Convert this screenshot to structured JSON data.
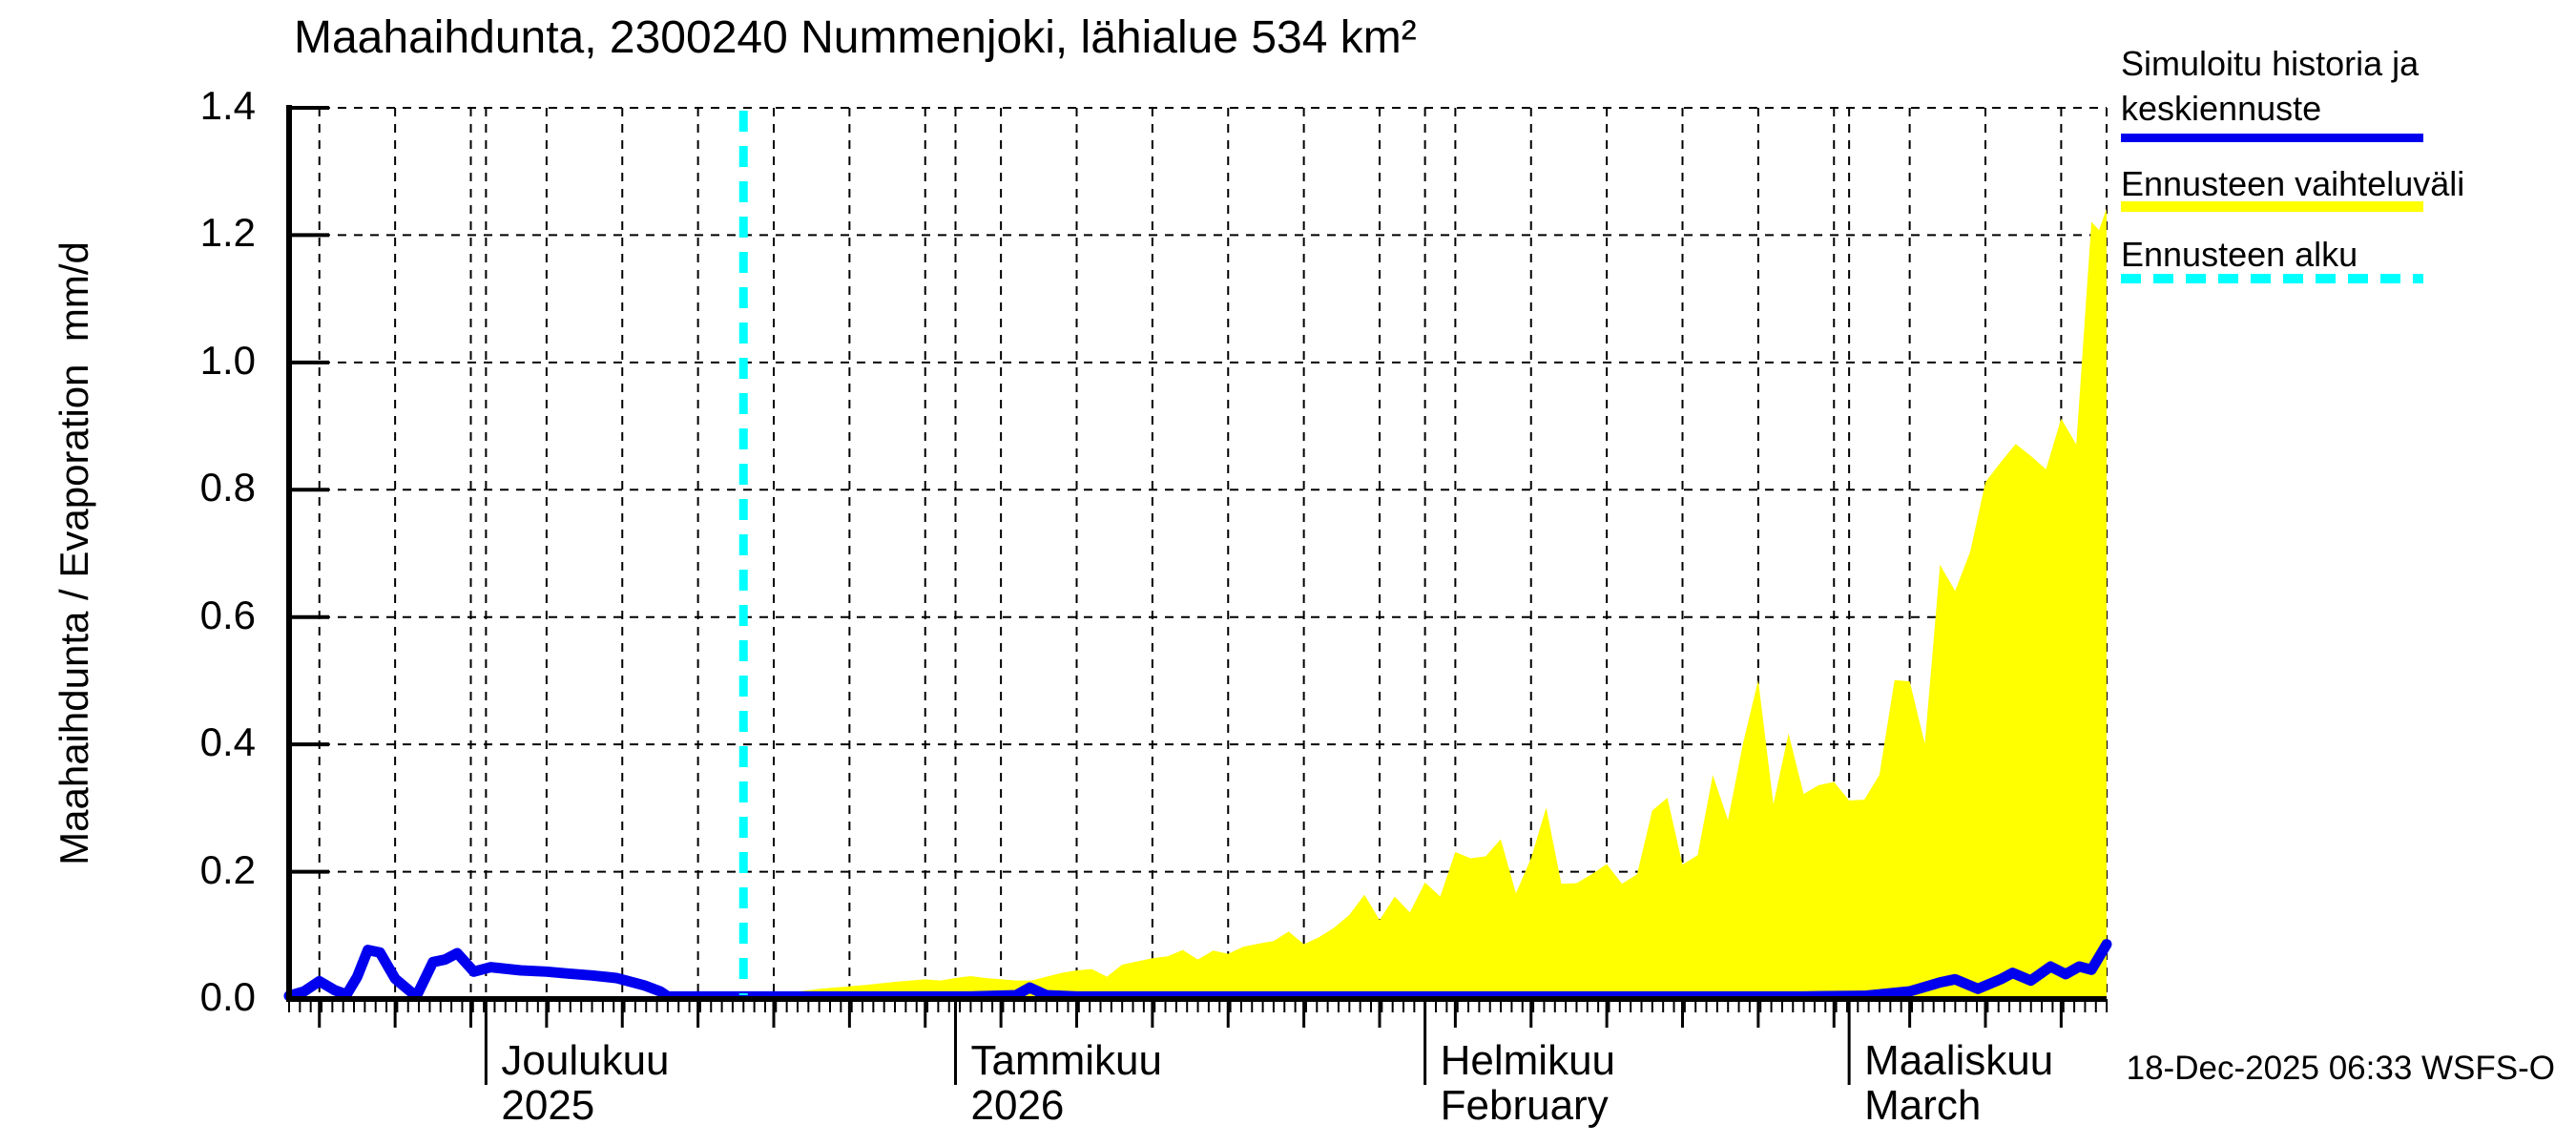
{
  "title": "Maahaihdunta, 2300240 Nummenjoki, lähialue 534 km²",
  "footer": "18-Dec-2025 06:33 WSFS-O",
  "y_axis": {
    "label": "Maahaihdunta / Evaporation  mm/d",
    "tick_labels": [
      "1.4",
      "1.2",
      "1.0",
      "0.8",
      "0.6",
      "0.4",
      "0.2",
      "0.0"
    ]
  },
  "x_axis": {
    "months": [
      {
        "label": "Joulukuu",
        "sublabel": "2025",
        "start_day": 13
      },
      {
        "label": "Tammikuu",
        "sublabel": "2026",
        "start_day": 44
      },
      {
        "label": "Helmikuu",
        "sublabel": "February",
        "start_day": 75
      },
      {
        "label": "Maaliskuu",
        "sublabel": "March",
        "start_day": 103
      }
    ]
  },
  "legend": {
    "items": [
      {
        "label": "Simuloitu historia ja keskiennuste",
        "label_lines": [
          "Simuloitu historia ja",
          "keskiennuste"
        ],
        "color": "#0000ee",
        "style": "solid"
      },
      {
        "label": "Ennusteen vaihteluväli",
        "label_lines": [
          "Ennusteen vaihteluväli"
        ],
        "color": "#ffff00",
        "style": "solid"
      },
      {
        "label": "Ennusteen alku",
        "label_lines": [
          "Ennusteen alku"
        ],
        "color": "#00ffff",
        "style": "dashed"
      }
    ]
  },
  "chart_data": {
    "type": "area+line",
    "title": "Maahaihdunta, 2300240 Nummenjoki, lähialue 534 km²",
    "ylabel": "Maahaihdunta / Evaporation mm/d",
    "ylim": [
      0,
      1.4
    ],
    "ytick_step": 0.2,
    "grid": true,
    "legend_position": "top-right",
    "x_unit": "days since timeline start",
    "timeline": {
      "start": "2025-11-18",
      "end": "2026-03-18",
      "days": 120,
      "forecast_start_day": 30,
      "forecast_start_date": "2025-12-18",
      "vgrid_first_day": 2,
      "vgrid_step_days": 5
    },
    "colors": {
      "median": "#0000ee",
      "range": "#ffff00",
      "forecast_start": "#00ffff",
      "grid": "#000000",
      "background": "#ffffff"
    },
    "series": [
      {
        "name": "Simuloitu historia ja keskiennuste",
        "type": "line",
        "color": "#0000ee",
        "points": [
          [
            0,
            0.005
          ],
          [
            1,
            0.012
          ],
          [
            2,
            0.028
          ],
          [
            3,
            0.014
          ],
          [
            3.8,
            0.007
          ],
          [
            4.5,
            0.035
          ],
          [
            5.2,
            0.077
          ],
          [
            6,
            0.073
          ],
          [
            7,
            0.032
          ],
          [
            8.4,
            0.004
          ],
          [
            9.5,
            0.058
          ],
          [
            10.3,
            0.062
          ],
          [
            11.1,
            0.072
          ],
          [
            12.2,
            0.043
          ],
          [
            13.3,
            0.05
          ],
          [
            15.3,
            0.045
          ],
          [
            17,
            0.043
          ],
          [
            18.4,
            0.04
          ],
          [
            20,
            0.037
          ],
          [
            21.6,
            0.033
          ],
          [
            23.5,
            0.021
          ],
          [
            24.5,
            0.012
          ],
          [
            25,
            0.004
          ],
          [
            28,
            0.004
          ],
          [
            30,
            0.004
          ],
          [
            35,
            0.004
          ],
          [
            40,
            0.004
          ],
          [
            45,
            0.004
          ],
          [
            48,
            0.006
          ],
          [
            48.9,
            0.018
          ],
          [
            50,
            0.006
          ],
          [
            52,
            0.004
          ],
          [
            56,
            0.004
          ],
          [
            60,
            0.004
          ],
          [
            65,
            0.004
          ],
          [
            70,
            0.004
          ],
          [
            75,
            0.004
          ],
          [
            80,
            0.004
          ],
          [
            85,
            0.004
          ],
          [
            90,
            0.004
          ],
          [
            95,
            0.004
          ],
          [
            100,
            0.004
          ],
          [
            104,
            0.005
          ],
          [
            107,
            0.012
          ],
          [
            109,
            0.026
          ],
          [
            110,
            0.031
          ],
          [
            111.5,
            0.016
          ],
          [
            113,
            0.031
          ],
          [
            113.8,
            0.041
          ],
          [
            115,
            0.029
          ],
          [
            116.3,
            0.051
          ],
          [
            117.3,
            0.039
          ],
          [
            118.2,
            0.051
          ],
          [
            119,
            0.046
          ],
          [
            120,
            0.086
          ]
        ]
      },
      {
        "name": "Ennusteen vaihteluväli",
        "type": "area",
        "color": "#ffff00",
        "lower": 0,
        "upper": [
          [
            30,
            0
          ],
          [
            31,
            0.004
          ],
          [
            32,
            0.007
          ],
          [
            33,
            0.01
          ],
          [
            34,
            0.013
          ],
          [
            35,
            0.016
          ],
          [
            36,
            0.018
          ],
          [
            38,
            0.022
          ],
          [
            40,
            0.027
          ],
          [
            42,
            0.031
          ],
          [
            43,
            0.029
          ],
          [
            44,
            0.033
          ],
          [
            45,
            0.036
          ],
          [
            46,
            0.033
          ],
          [
            48,
            0.029
          ],
          [
            49,
            0.029
          ],
          [
            50,
            0.035
          ],
          [
            51,
            0.041
          ],
          [
            52,
            0.045
          ],
          [
            53,
            0.047
          ],
          [
            54,
            0.035
          ],
          [
            55,
            0.054
          ],
          [
            56,
            0.059
          ],
          [
            57,
            0.064
          ],
          [
            58,
            0.067
          ],
          [
            59,
            0.077
          ],
          [
            60,
            0.062
          ],
          [
            61,
            0.076
          ],
          [
            62,
            0.071
          ],
          [
            63,
            0.082
          ],
          [
            64,
            0.087
          ],
          [
            65,
            0.091
          ],
          [
            66,
            0.106
          ],
          [
            67,
            0.086
          ],
          [
            68,
            0.097
          ],
          [
            69,
            0.112
          ],
          [
            70,
            0.132
          ],
          [
            71,
            0.164
          ],
          [
            72,
            0.124
          ],
          [
            73,
            0.161
          ],
          [
            74,
            0.136
          ],
          [
            75,
            0.183
          ],
          [
            76,
            0.161
          ],
          [
            77,
            0.231
          ],
          [
            78,
            0.221
          ],
          [
            79,
            0.224
          ],
          [
            80,
            0.251
          ],
          [
            81,
            0.166
          ],
          [
            82,
            0.221
          ],
          [
            83,
            0.301
          ],
          [
            84,
            0.181
          ],
          [
            85,
            0.182
          ],
          [
            86,
            0.196
          ],
          [
            87,
            0.212
          ],
          [
            88,
            0.181
          ],
          [
            89,
            0.196
          ],
          [
            90,
            0.296
          ],
          [
            91,
            0.316
          ],
          [
            92,
            0.211
          ],
          [
            93,
            0.226
          ],
          [
            94,
            0.352
          ],
          [
            95,
            0.281
          ],
          [
            96,
            0.402
          ],
          [
            97,
            0.501
          ],
          [
            98,
            0.306
          ],
          [
            99,
            0.417
          ],
          [
            100,
            0.322
          ],
          [
            101,
            0.336
          ],
          [
            102,
            0.341
          ],
          [
            103,
            0.312
          ],
          [
            104,
            0.313
          ],
          [
            105,
            0.352
          ],
          [
            106,
            0.501
          ],
          [
            107,
            0.499
          ],
          [
            108,
            0.401
          ],
          [
            109,
            0.682
          ],
          [
            110,
            0.641
          ],
          [
            111,
            0.703
          ],
          [
            112,
            0.812
          ],
          [
            113,
            0.843
          ],
          [
            114,
            0.872
          ],
          [
            115,
            0.853
          ],
          [
            116,
            0.832
          ],
          [
            117,
            0.912
          ],
          [
            118,
            0.871
          ],
          [
            119,
            1.221
          ],
          [
            119.5,
            1.208
          ],
          [
            120,
            1.242
          ]
        ]
      },
      {
        "name": "Ennusteen alku",
        "type": "vline",
        "color": "#00ffff",
        "day": 30
      }
    ]
  }
}
